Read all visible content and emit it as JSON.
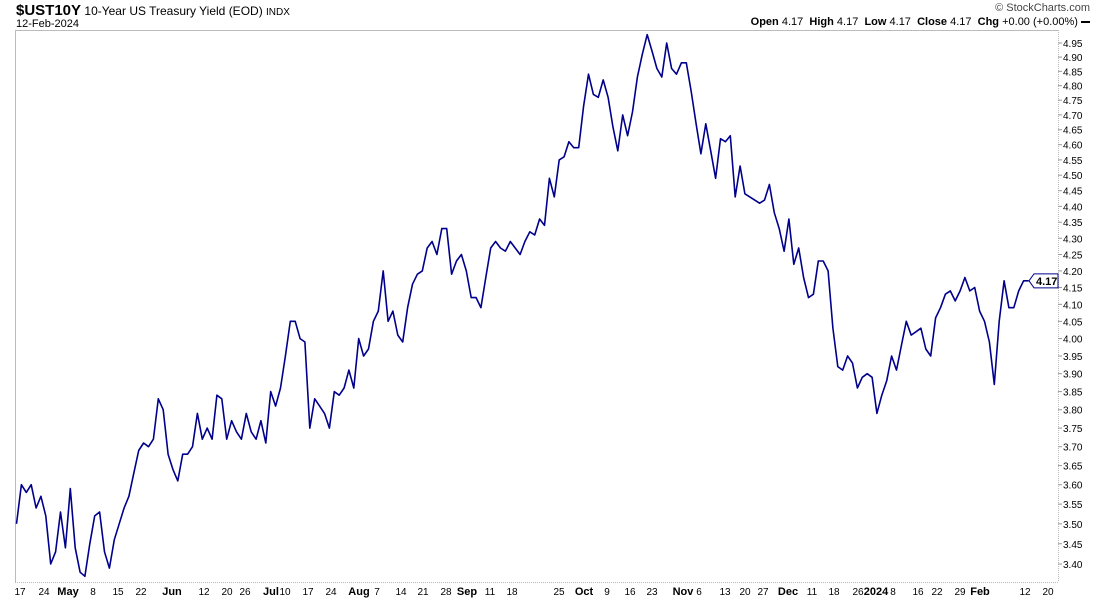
{
  "header": {
    "symbol": "$UST10Y",
    "name": "10-Year US Treasury Yield (EOD)",
    "exchange": "INDX",
    "date": "12-Feb-2024",
    "copyright": "© StockCharts.com",
    "open_label": "Open",
    "open": "4.17",
    "high_label": "High",
    "high": "4.17",
    "low_label": "Low",
    "low": "4.17",
    "close_label": "Close",
    "close": "4.17",
    "chg_label": "Chg",
    "chg": "+0.00 (+0.00%)",
    "last_badge": "4.17"
  },
  "colors": {
    "line": "#00008b",
    "axis": "#999999"
  },
  "chart_data": {
    "type": "line",
    "title": "$UST10Y 10-Year US Treasury Yield (EOD)",
    "scale": "log",
    "ylim": [
      3.35,
      4.99
    ],
    "yticks": [
      "4.95",
      "4.90",
      "4.85",
      "4.80",
      "4.75",
      "4.70",
      "4.65",
      "4.60",
      "4.55",
      "4.50",
      "4.45",
      "4.40",
      "4.35",
      "4.30",
      "4.25",
      "4.20",
      "4.15",
      "4.10",
      "4.05",
      "4.00",
      "3.95",
      "3.90",
      "3.85",
      "3.80",
      "3.75",
      "3.70",
      "3.65",
      "3.60",
      "3.55",
      "3.50",
      "3.45",
      "3.40"
    ],
    "xticks": [
      {
        "label": "17",
        "bold": false
      },
      {
        "label": "24",
        "bold": false
      },
      {
        "label": "May",
        "bold": true
      },
      {
        "label": "8",
        "bold": false
      },
      {
        "label": "15",
        "bold": false
      },
      {
        "label": "22",
        "bold": false
      },
      {
        "label": "Jun",
        "bold": true
      },
      {
        "label": "12",
        "bold": false
      },
      {
        "label": "20",
        "bold": false
      },
      {
        "label": "26",
        "bold": false
      },
      {
        "label": "Jul",
        "bold": true
      },
      {
        "label": "10",
        "bold": false
      },
      {
        "label": "17",
        "bold": false
      },
      {
        "label": "24",
        "bold": false
      },
      {
        "label": "Aug",
        "bold": true
      },
      {
        "label": "7",
        "bold": false
      },
      {
        "label": "14",
        "bold": false
      },
      {
        "label": "21",
        "bold": false
      },
      {
        "label": "28",
        "bold": false
      },
      {
        "label": "Sep",
        "bold": true
      },
      {
        "label": "11",
        "bold": false
      },
      {
        "label": "18",
        "bold": false
      },
      {
        "label": "25",
        "bold": false
      },
      {
        "label": "Oct",
        "bold": true
      },
      {
        "label": "9",
        "bold": false
      },
      {
        "label": "16",
        "bold": false
      },
      {
        "label": "23",
        "bold": false
      },
      {
        "label": "Nov",
        "bold": true
      },
      {
        "label": "6",
        "bold": false
      },
      {
        "label": "13",
        "bold": false
      },
      {
        "label": "20",
        "bold": false
      },
      {
        "label": "27",
        "bold": false
      },
      {
        "label": "Dec",
        "bold": true
      },
      {
        "label": "11",
        "bold": false
      },
      {
        "label": "18",
        "bold": false
      },
      {
        "label": "26",
        "bold": false
      },
      {
        "label": "2024",
        "bold": true
      },
      {
        "label": "8",
        "bold": false
      },
      {
        "label": "16",
        "bold": false
      },
      {
        "label": "22",
        "bold": false
      },
      {
        "label": "29",
        "bold": false
      },
      {
        "label": "Feb",
        "bold": true
      },
      {
        "label": "12",
        "bold": false
      },
      {
        "label": "20",
        "bold": false
      }
    ],
    "series": [
      {
        "name": "$UST10Y",
        "values": [
          3.5,
          3.6,
          3.58,
          3.6,
          3.54,
          3.57,
          3.52,
          3.4,
          3.43,
          3.53,
          3.44,
          3.59,
          3.44,
          3.38,
          3.37,
          3.45,
          3.52,
          3.53,
          3.43,
          3.39,
          3.46,
          3.5,
          3.54,
          3.57,
          3.63,
          3.69,
          3.71,
          3.7,
          3.72,
          3.83,
          3.8,
          3.68,
          3.64,
          3.61,
          3.68,
          3.68,
          3.7,
          3.79,
          3.72,
          3.75,
          3.72,
          3.84,
          3.83,
          3.72,
          3.77,
          3.74,
          3.72,
          3.79,
          3.74,
          3.72,
          3.77,
          3.71,
          3.85,
          3.81,
          3.86,
          3.95,
          4.05,
          4.05,
          4.0,
          3.99,
          3.75,
          3.83,
          3.81,
          3.79,
          3.75,
          3.85,
          3.84,
          3.86,
          3.91,
          3.86,
          4.0,
          3.95,
          3.97,
          4.05,
          4.08,
          4.2,
          4.05,
          4.08,
          4.01,
          3.99,
          4.09,
          4.16,
          4.19,
          4.2,
          4.27,
          4.29,
          4.25,
          4.33,
          4.33,
          4.19,
          4.23,
          4.25,
          4.2,
          4.12,
          4.12,
          4.09,
          4.18,
          4.27,
          4.29,
          4.27,
          4.26,
          4.29,
          4.27,
          4.25,
          4.29,
          4.32,
          4.31,
          4.36,
          4.34,
          4.49,
          4.43,
          4.55,
          4.56,
          4.61,
          4.59,
          4.59,
          4.73,
          4.84,
          4.77,
          4.76,
          4.82,
          4.76,
          4.66,
          4.58,
          4.7,
          4.63,
          4.71,
          4.83,
          4.91,
          4.98,
          4.92,
          4.86,
          4.83,
          4.95,
          4.86,
          4.84,
          4.88,
          4.88,
          4.78,
          4.67,
          4.57,
          4.67,
          4.58,
          4.49,
          4.62,
          4.61,
          4.63,
          4.43,
          4.53,
          4.44,
          4.43,
          4.42,
          4.41,
          4.42,
          4.47,
          4.38,
          4.33,
          4.26,
          4.36,
          4.22,
          4.27,
          4.18,
          4.12,
          4.13,
          4.23,
          4.23,
          4.2,
          4.03,
          3.92,
          3.91,
          3.95,
          3.93,
          3.86,
          3.89,
          3.9,
          3.89,
          3.79,
          3.84,
          3.88,
          3.95,
          3.91,
          3.98,
          4.05,
          4.01,
          4.02,
          4.03,
          3.97,
          3.95,
          4.06,
          4.09,
          4.13,
          4.14,
          4.11,
          4.14,
          4.18,
          4.14,
          4.15,
          4.08,
          4.05,
          3.99,
          3.87,
          4.05,
          4.17,
          4.09,
          4.09,
          4.14,
          4.17,
          4.17
        ]
      }
    ]
  }
}
